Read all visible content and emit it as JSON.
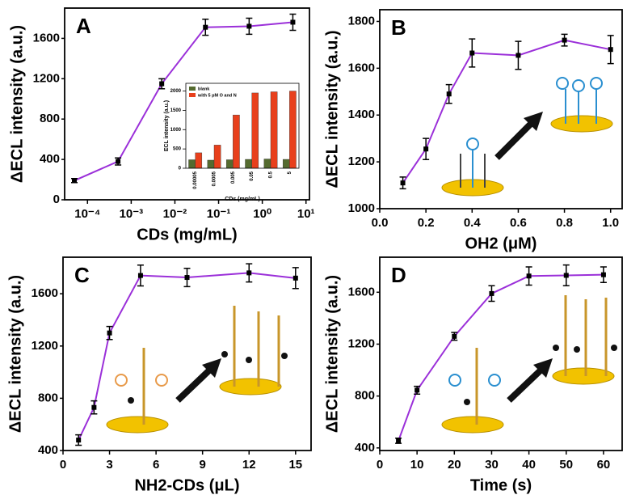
{
  "chart_data": [
    {
      "type": "line",
      "title": "A",
      "xlabel": "CDs (mg/mL)",
      "ylabel": "ΔECL intensity (a.u.)",
      "xscale": "log",
      "x": [
        5e-05,
        0.0005,
        0.005,
        0.05,
        0.5,
        5
      ],
      "values": [
        190,
        380,
        1150,
        1710,
        1720,
        1760
      ],
      "errors": [
        20,
        35,
        50,
        80,
        80,
        80
      ],
      "color": "#9b30d9",
      "xlim": [
        3e-05,
        12
      ],
      "xticks": [
        {
          "value": 0.0001,
          "label": "10⁻⁴"
        },
        {
          "value": 0.001,
          "label": "10⁻³"
        },
        {
          "value": 0.01,
          "label": "10⁻²"
        },
        {
          "value": 0.1,
          "label": "10⁻¹"
        },
        {
          "value": 1,
          "label": "10⁰"
        },
        {
          "value": 10,
          "label": "10¹"
        }
      ],
      "ylim": [
        0,
        1900
      ],
      "yticks": [
        0,
        400,
        800,
        1200,
        1600
      ]
    },
    {
      "type": "line",
      "title": "B",
      "xlabel": "OH2 (μM)",
      "ylabel": "ΔECL intensity (a.u.)",
      "x": [
        0.1,
        0.2,
        0.3,
        0.4,
        0.6,
        0.8,
        1.0
      ],
      "values": [
        1110,
        1255,
        1490,
        1665,
        1655,
        1720,
        1680
      ],
      "errors": [
        25,
        45,
        40,
        60,
        60,
        25,
        60
      ],
      "color": "#9b30d9",
      "xlim": [
        0,
        1.05
      ],
      "xticks": [
        {
          "value": 0,
          "label": "0.0"
        },
        0.2,
        0.4,
        0.6,
        0.8,
        {
          "value": 1,
          "label": "1.0"
        }
      ],
      "ylim": [
        1000,
        1850
      ],
      "yticks": [
        1000,
        1200,
        1400,
        1600,
        1800
      ]
    },
    {
      "type": "line",
      "title": "C",
      "xlabel": "NH2-CDs (μL)",
      "ylabel": "ΔECL intensity (a.u.)",
      "x": [
        1,
        2,
        3,
        5,
        8,
        12,
        15
      ],
      "values": [
        480,
        730,
        1300,
        1740,
        1725,
        1760,
        1720
      ],
      "errors": [
        40,
        50,
        50,
        80,
        70,
        70,
        80
      ],
      "color": "#9b30d9",
      "xlim": [
        0,
        16
      ],
      "xticks": [
        0,
        3,
        6,
        9,
        12,
        15
      ],
      "ylim": [
        400,
        1880
      ],
      "yticks": [
        400,
        800,
        1200,
        1600
      ]
    },
    {
      "type": "line",
      "title": "D",
      "xlabel": "Time (s)",
      "ylabel": "ΔECL intensity (a.u.)",
      "x": [
        5,
        10,
        20,
        30,
        40,
        50,
        60
      ],
      "values": [
        455,
        845,
        1260,
        1590,
        1725,
        1730,
        1735
      ],
      "errors": [
        20,
        30,
        30,
        60,
        70,
        80,
        60
      ],
      "color": "#9b30d9",
      "xlim": [
        0,
        65
      ],
      "xticks": [
        0,
        10,
        20,
        30,
        40,
        50,
        60
      ],
      "ylim": [
        380,
        1870
      ],
      "yticks": [
        400,
        800,
        1200,
        1600
      ]
    },
    {
      "type": "bar",
      "xlabel": "CDs (mg/mL)",
      "ylabel": "ECL intensity (a.u.)",
      "categories": [
        "0.00005",
        "0.0005",
        "0.005",
        "0.05",
        "0.5",
        "5"
      ],
      "series": [
        {
          "name": "blank",
          "color": "#556b2f",
          "values": [
            220,
            210,
            220,
            230,
            240,
            230
          ]
        },
        {
          "name": "with 5 pM O and N",
          "color": "#e8401c",
          "values": [
            400,
            600,
            1380,
            1950,
            1980,
            2000
          ]
        }
      ],
      "ylim": [
        0,
        2200
      ],
      "yticks": [
        0,
        500,
        1000,
        1500,
        2000
      ]
    }
  ]
}
